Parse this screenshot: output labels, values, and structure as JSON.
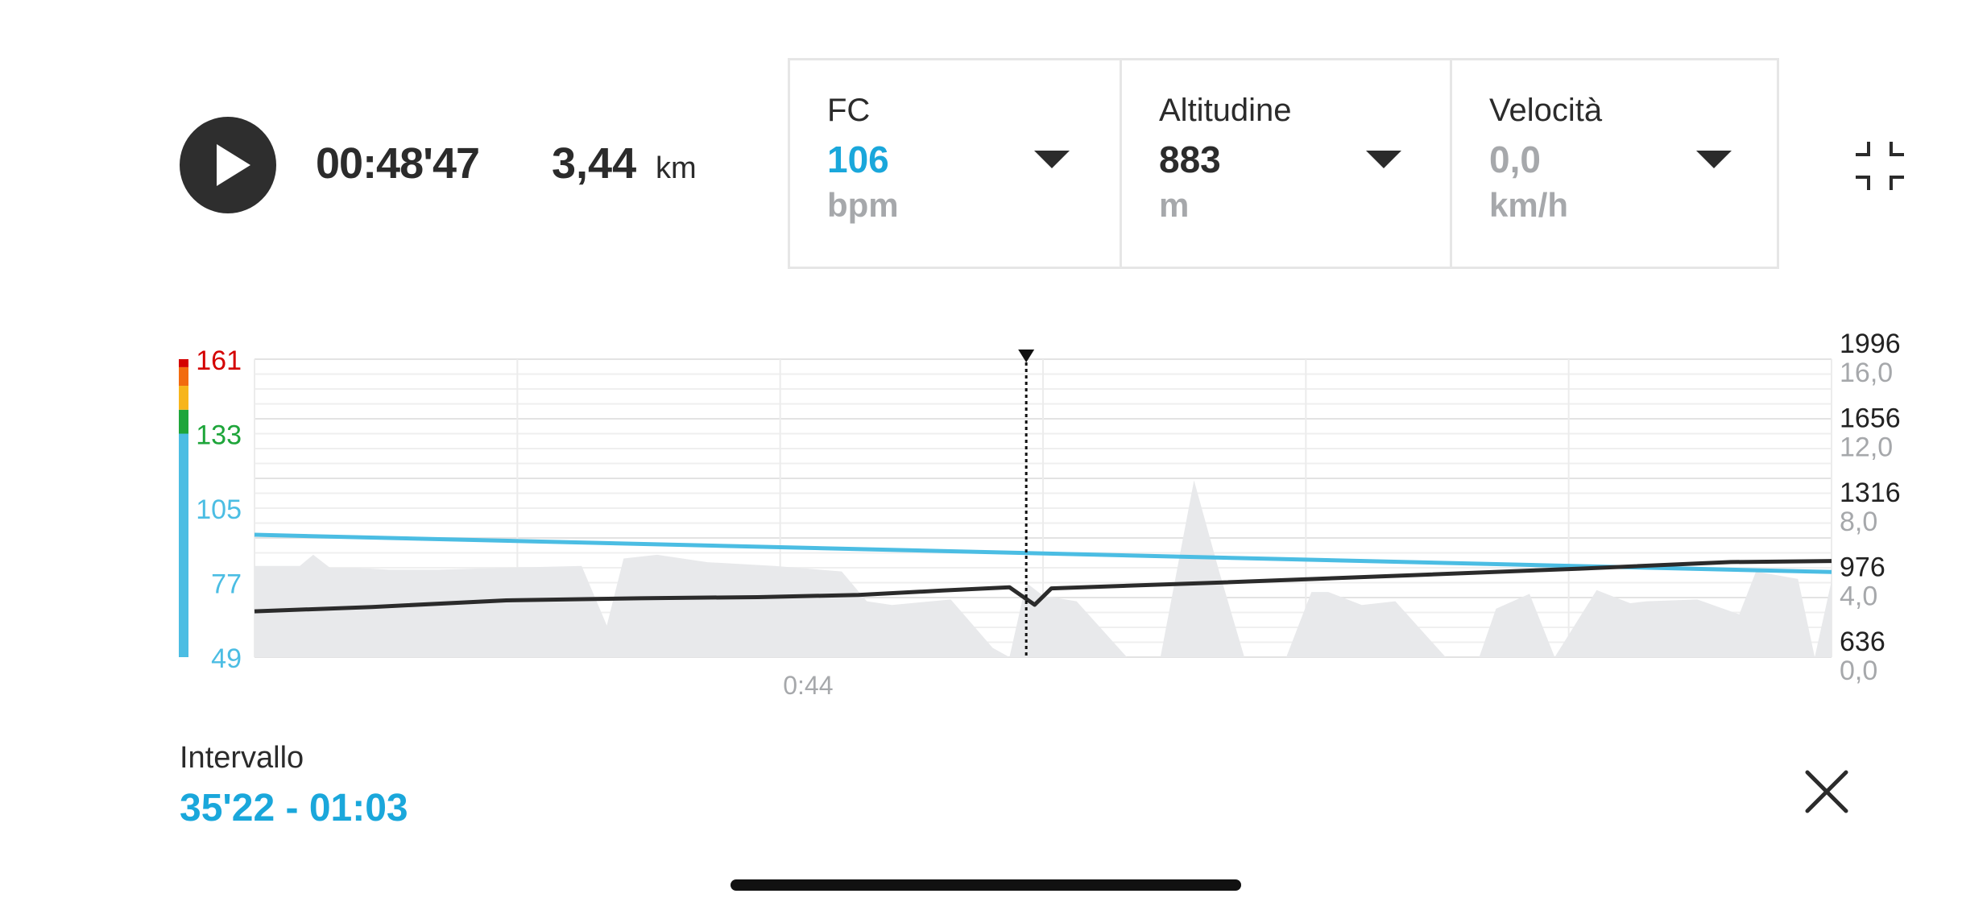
{
  "player": {
    "elapsed": "00:48'47",
    "distance_value": "3,44",
    "distance_unit": "km"
  },
  "metrics": [
    {
      "label": "FC",
      "value": "106",
      "unit": "bpm",
      "value_color": "#1aa7db"
    },
    {
      "label": "Altitudine",
      "value": "883",
      "unit": "m",
      "value_color": "#2b2b2b"
    },
    {
      "label": "Velocità",
      "value": "0,0",
      "unit": "km/h",
      "value_color": "#a6a8ab"
    }
  ],
  "interval": {
    "label": "Intervallo",
    "value": "35'22 - 01:03"
  },
  "colors": {
    "hr_line": "#4bbde3",
    "altitude_line": "#2b2b2b",
    "speed_area": "#e8e9eb",
    "zone_red": "#d40000",
    "zone_orange": "#f26b0f",
    "zone_yellow": "#f7b51b",
    "zone_green": "#1ea53a",
    "zone_blue": "#4bbde3"
  },
  "icons": {
    "play": "play-icon",
    "dropdown": "caret-down-icon",
    "collapse": "collapse-icon",
    "close": "close-icon"
  },
  "chart_data": {
    "type": "line",
    "x_ticks": [
      "0:44"
    ],
    "x_tick_values": [
      44
    ],
    "x_range": [
      40.7,
      50.1
    ],
    "cursor_x": 45.3,
    "hr_axis": {
      "ticks": [
        "161",
        "133",
        "105",
        "77",
        "49"
      ],
      "tick_values": [
        161,
        133,
        105,
        77,
        49
      ],
      "tick_colors": [
        "#d40000",
        "#1ea53a",
        "#4bbde3",
        "#4bbde3",
        "#4bbde3"
      ],
      "range": [
        49,
        161
      ],
      "zones": [
        {
          "from": 49,
          "to": 133,
          "color": "#4bbde3"
        },
        {
          "from": 133,
          "to": 142,
          "color": "#1ea53a"
        },
        {
          "from": 142,
          "to": 151,
          "color": "#f7b51b"
        },
        {
          "from": 151,
          "to": 158,
          "color": "#f26b0f"
        },
        {
          "from": 158,
          "to": 161,
          "color": "#d40000"
        }
      ]
    },
    "altitude_axis": {
      "ticks": [
        "1996",
        "1656",
        "1316",
        "976",
        "636"
      ],
      "tick_values": [
        1996,
        1656,
        1316,
        976,
        636
      ],
      "range": [
        636,
        1996
      ]
    },
    "speed_axis": {
      "ticks": [
        "16,0",
        "12,0",
        "8,0",
        "4,0",
        "0,0"
      ],
      "tick_values": [
        16,
        12,
        8,
        4,
        0
      ],
      "range": [
        0,
        16
      ]
    },
    "series": [
      {
        "name": "FC",
        "axis": "hr",
        "x": [
          40.7,
          50.1
        ],
        "values": [
          95,
          81
        ]
      },
      {
        "name": "Altitudine",
        "axis": "altitude",
        "x": [
          40.7,
          41.4,
          42.2,
          43.0,
          43.7,
          44.3,
          44.8,
          45.2,
          45.35,
          45.45,
          46.4,
          47.6,
          48.6,
          49.5,
          50.1
        ],
        "values": [
          845,
          865,
          895,
          905,
          910,
          920,
          940,
          955,
          875,
          950,
          975,
          1010,
          1040,
          1070,
          1075
        ]
      },
      {
        "name": "Velocità",
        "axis": "speed",
        "type": "area",
        "x": [
          40.7,
          40.97,
          41.05,
          41.15,
          41.3,
          41.5,
          41.8,
          42.2,
          42.65,
          42.8,
          42.9,
          43.1,
          43.4,
          43.8,
          44.2,
          44.35,
          44.5,
          44.85,
          45.1,
          45.2,
          45.3,
          45.4,
          45.6,
          45.9,
          46.1,
          46.3,
          46.45,
          46.6,
          46.85,
          47.0,
          47.1,
          47.3,
          47.5,
          47.8,
          48.0,
          48.1,
          48.3,
          48.45,
          48.7,
          48.9,
          49.0,
          49.3,
          49.55,
          49.65,
          49.9,
          50.0,
          50.1
        ],
        "values": [
          4.9,
          4.9,
          5.5,
          4.8,
          4.8,
          4.7,
          4.7,
          4.8,
          4.9,
          1.7,
          5.3,
          5.5,
          5.1,
          4.9,
          4.6,
          3.0,
          2.8,
          3.1,
          0.5,
          0.0,
          4.0,
          3.3,
          3.0,
          0.0,
          0.0,
          9.5,
          4.6,
          0.0,
          0.0,
          3.5,
          3.5,
          2.8,
          3.0,
          0.0,
          0.0,
          2.6,
          3.4,
          0.0,
          3.6,
          2.9,
          3.0,
          3.1,
          2.3,
          4.6,
          4.2,
          0.0,
          4.1
        ]
      }
    ],
    "grid": true,
    "legend": "none"
  }
}
